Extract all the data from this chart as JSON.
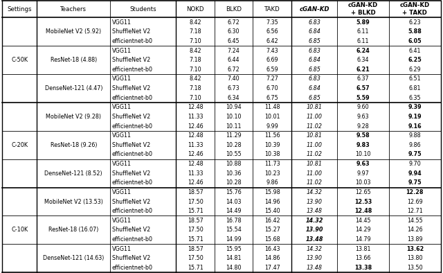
{
  "col_headers": [
    "Settings",
    "Teachers",
    "Students",
    "NOKD",
    "BLKD",
    "TAKD",
    "cGAN-KD",
    "cGAN-KD\n+ BLKD",
    "cGAN-KD\n+ TAKD"
  ],
  "settings_groups": [
    {
      "setting": "C-50K",
      "teachers": [
        {
          "teacher": "MobileNet V2 (5.92)",
          "students": [
            "VGG11",
            "ShuffleNet V2",
            "efficientnet-b0"
          ],
          "nokd": [
            "8.42",
            "7.18",
            "7.10"
          ],
          "blkd": [
            "6.72",
            "6.30",
            "6.45"
          ],
          "takd": [
            "7.35",
            "6.56",
            "6.42"
          ],
          "cgankd": [
            "6.83",
            "6.84",
            "6.85"
          ],
          "cganblkd": [
            "5.89",
            "6.11",
            "6.11"
          ],
          "cgantakd": [
            "6.23",
            "5.88",
            "6.05"
          ],
          "bold_cganblkd": [
            true,
            false,
            false
          ],
          "bold_cgantakd": [
            false,
            true,
            true
          ],
          "bold_cgankd": [
            false,
            false,
            false
          ]
        },
        {
          "teacher": "ResNet-18 (4.88)",
          "students": [
            "VGG11",
            "ShuffleNet V2",
            "efficientnet-b0"
          ],
          "nokd": [
            "8.42",
            "7.18",
            "7.10"
          ],
          "blkd": [
            "7.24",
            "6.44",
            "6.72"
          ],
          "takd": [
            "7.43",
            "6.69",
            "6.59"
          ],
          "cgankd": [
            "6.83",
            "6.84",
            "6.85"
          ],
          "cganblkd": [
            "6.24",
            "6.34",
            "6.21"
          ],
          "cgantakd": [
            "6.41",
            "6.25",
            "6.29"
          ],
          "bold_cganblkd": [
            true,
            false,
            true
          ],
          "bold_cgantakd": [
            false,
            true,
            false
          ],
          "bold_cgankd": [
            false,
            false,
            false
          ]
        },
        {
          "teacher": "DenseNet-121 (4.47)",
          "students": [
            "VGG11",
            "ShuffleNet V2",
            "efficientnet-b0"
          ],
          "nokd": [
            "8.42",
            "7.18",
            "7.10"
          ],
          "blkd": [
            "7.40",
            "6.73",
            "6.34"
          ],
          "takd": [
            "7.27",
            "6.70",
            "6.75"
          ],
          "cgankd": [
            "6.83",
            "6.84",
            "6.85"
          ],
          "cganblkd": [
            "6.37",
            "6.57",
            "5.59"
          ],
          "cgantakd": [
            "6.51",
            "6.81",
            "6.35"
          ],
          "bold_cganblkd": [
            false,
            true,
            true
          ],
          "bold_cgantakd": [
            false,
            false,
            false
          ],
          "bold_cgankd": [
            false,
            false,
            false
          ]
        }
      ]
    },
    {
      "setting": "C-20K",
      "teachers": [
        {
          "teacher": "MobileNet V2 (9.28)",
          "students": [
            "VGG11",
            "ShuffleNet V2",
            "efficientnet-b0"
          ],
          "nokd": [
            "12.48",
            "11.33",
            "12.46"
          ],
          "blkd": [
            "10.94",
            "10.10",
            "10.11"
          ],
          "takd": [
            "11.48",
            "10.01",
            "9.99"
          ],
          "cgankd": [
            "10.81",
            "11.00",
            "11.02"
          ],
          "cganblkd": [
            "9.60",
            "9.63",
            "9.28"
          ],
          "cgantakd": [
            "9.39",
            "9.19",
            "9.16"
          ],
          "bold_cganblkd": [
            false,
            false,
            false
          ],
          "bold_cgantakd": [
            true,
            true,
            true
          ],
          "bold_cgankd": [
            false,
            false,
            false
          ]
        },
        {
          "teacher": "ResNet-18 (9.26)",
          "students": [
            "VGG11",
            "ShuffleNet V2",
            "efficientnet-b0"
          ],
          "nokd": [
            "12.48",
            "11.33",
            "12.46"
          ],
          "blkd": [
            "11.29",
            "10.28",
            "10.55"
          ],
          "takd": [
            "11.56",
            "10.39",
            "10.38"
          ],
          "cgankd": [
            "10.81",
            "11.00",
            "11.02"
          ],
          "cganblkd": [
            "9.58",
            "9.83",
            "10.10"
          ],
          "cgantakd": [
            "9.88",
            "9.86",
            "9.75"
          ],
          "bold_cganblkd": [
            true,
            true,
            false
          ],
          "bold_cgantakd": [
            false,
            false,
            true
          ],
          "bold_cgankd": [
            false,
            false,
            false
          ]
        },
        {
          "teacher": "DenseNet-121 (8.52)",
          "students": [
            "VGG11",
            "ShuffleNet V2",
            "efficientnet-b0"
          ],
          "nokd": [
            "12.48",
            "11.33",
            "12.46"
          ],
          "blkd": [
            "10.88",
            "10.36",
            "10.28"
          ],
          "takd": [
            "11.73",
            "10.23",
            "9.86"
          ],
          "cgankd": [
            "10.81",
            "11.00",
            "11.02"
          ],
          "cganblkd": [
            "9.63",
            "9.97",
            "10.03"
          ],
          "cgantakd": [
            "9.70",
            "9.94",
            "9.75"
          ],
          "bold_cganblkd": [
            true,
            false,
            false
          ],
          "bold_cgantakd": [
            false,
            true,
            true
          ],
          "bold_cgankd": [
            false,
            false,
            false
          ]
        }
      ]
    },
    {
      "setting": "C-10K",
      "teachers": [
        {
          "teacher": "MobileNet V2 (13.53)",
          "students": [
            "VGG11",
            "ShuffleNet V2",
            "efficientnet-b0"
          ],
          "nokd": [
            "18.57",
            "17.50",
            "15.71"
          ],
          "blkd": [
            "15.76",
            "14.03",
            "14.49"
          ],
          "takd": [
            "15.98",
            "14.96",
            "15.40"
          ],
          "cgankd": [
            "14.32",
            "13.90",
            "13.48"
          ],
          "cganblkd": [
            "12.65",
            "12.53",
            "12.48"
          ],
          "cgantakd": [
            "12.28",
            "12.69",
            "12.71"
          ],
          "bold_cganblkd": [
            false,
            true,
            true
          ],
          "bold_cgantakd": [
            true,
            false,
            false
          ],
          "bold_cgankd": [
            false,
            false,
            false
          ]
        },
        {
          "teacher": "ResNet-18 (16.07)",
          "students": [
            "VGG11",
            "ShuffleNet V2",
            "efficientnet-b0"
          ],
          "nokd": [
            "18.57",
            "17.50",
            "15.71"
          ],
          "blkd": [
            "16.78",
            "15.54",
            "14.99"
          ],
          "takd": [
            "16.42",
            "15.27",
            "15.68"
          ],
          "cgankd": [
            "14.32",
            "13.90",
            "13.48"
          ],
          "cganblkd": [
            "14.45",
            "14.29",
            "14.79"
          ],
          "cgantakd": [
            "14.55",
            "14.26",
            "13.89"
          ],
          "bold_cganblkd": [
            false,
            false,
            false
          ],
          "bold_cgantakd": [
            false,
            false,
            false
          ],
          "bold_cgankd": [
            true,
            true,
            true
          ]
        },
        {
          "teacher": "DenseNet-121 (14.63)",
          "students": [
            "VGG11",
            "ShuffleNet V2",
            "efficientnet-b0"
          ],
          "nokd": [
            "18.57",
            "17.50",
            "15.71"
          ],
          "blkd": [
            "15.95",
            "14.81",
            "14.80"
          ],
          "takd": [
            "16.43",
            "14.86",
            "17.47"
          ],
          "cgankd": [
            "14.32",
            "13.90",
            "13.48"
          ],
          "cganblkd": [
            "13.81",
            "13.66",
            "13.38"
          ],
          "cgantakd": [
            "13.62",
            "13.80",
            "13.50"
          ],
          "bold_cganblkd": [
            false,
            false,
            true
          ],
          "bold_cgantakd": [
            true,
            false,
            false
          ],
          "bold_cgankd": [
            false,
            false,
            false
          ]
        }
      ]
    }
  ]
}
